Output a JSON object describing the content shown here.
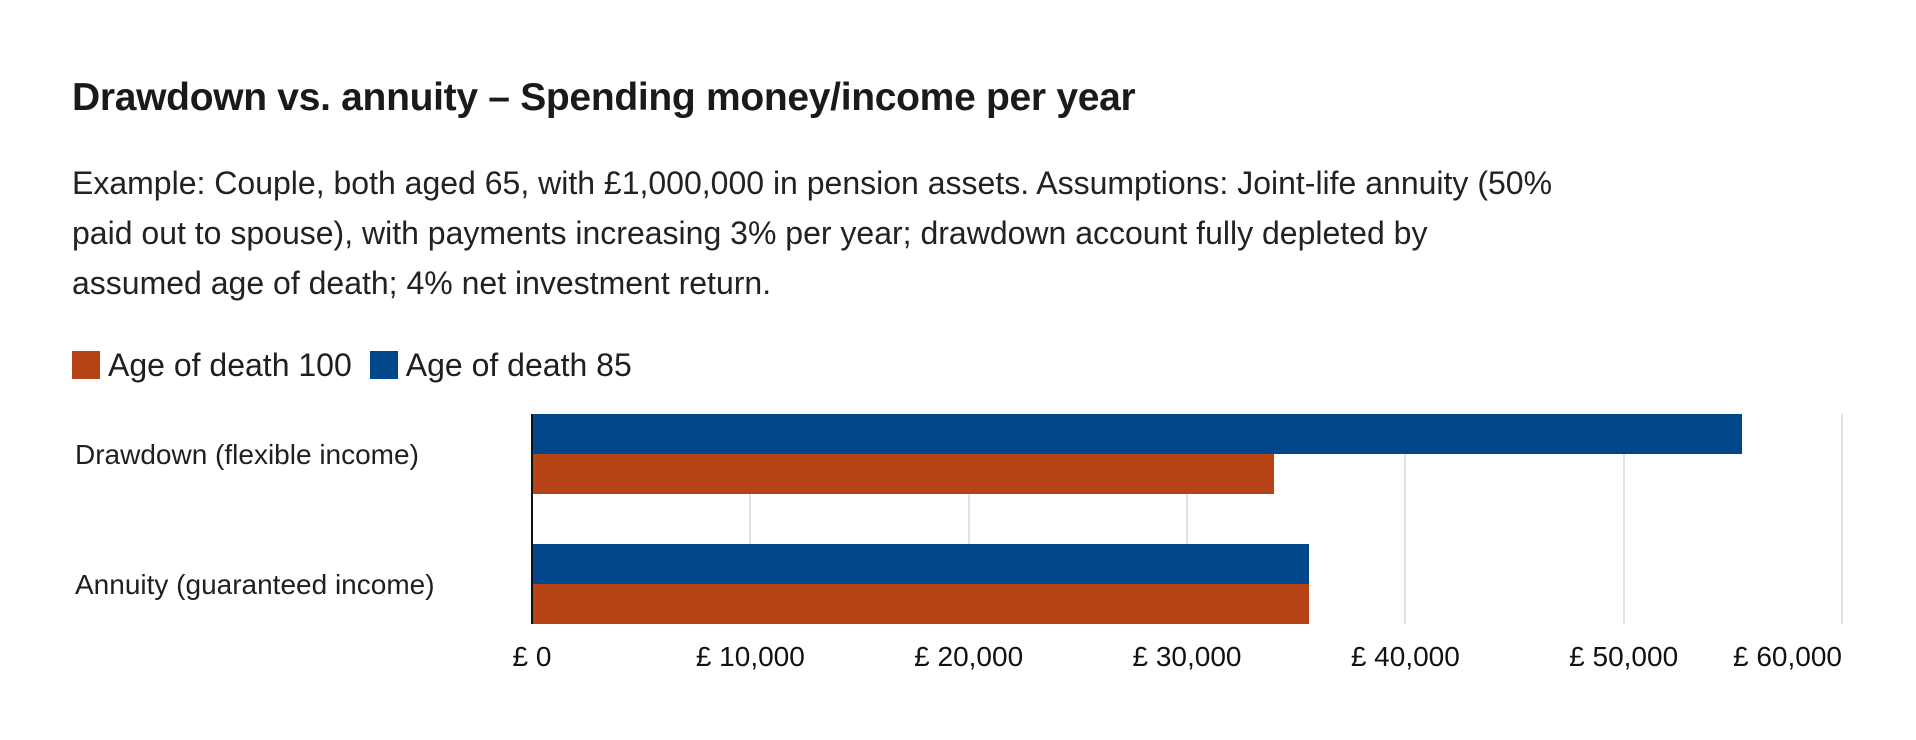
{
  "title": "Drawdown vs. annuity – Spending money/income per year",
  "subtitle_lines": [
    "Example: Couple, both aged 65, with £1,000,000 in pension assets. Assumptions: Joint-life annuity (50%",
    "paid out to spouse), with payments increasing 3% per year; drawdown account fully depleted by",
    "assumed age of death; 4% net investment return."
  ],
  "legend": [
    {
      "label": "Age of death 100",
      "color": "#B54316"
    },
    {
      "label": "Age of death 85",
      "color": "#00468B"
    }
  ],
  "colors": {
    "age_100": "#B54316",
    "age_85": "#00468B",
    "gridline": "#e3e3e3",
    "axis": "#111111"
  },
  "chart_data": {
    "type": "bar",
    "orientation": "horizontal",
    "title": "Drawdown vs. annuity – Spending money/income per year",
    "subtitle": "Example: Couple, both aged 65, with £1,000,000 in pension assets. Assumptions: Joint-life annuity (50% paid out to spouse), with payments increasing 3% per year; drawdown account fully depleted by assumed age of death; 4% net investment return.",
    "categories": [
      "Drawdown (flexible income)",
      "Annuity (guaranteed income)"
    ],
    "series": [
      {
        "name": "Age of death 85",
        "color": "#00468B",
        "values": [
          55400,
          35600
        ]
      },
      {
        "name": "Age of death 100",
        "color": "#B54316",
        "values": [
          34000,
          35600
        ]
      }
    ],
    "xlabel": "",
    "ylabel": "",
    "xlim": [
      0,
      60000
    ],
    "xticks": [
      0,
      10000,
      20000,
      30000,
      40000,
      50000,
      60000
    ],
    "xtick_labels": [
      "£ 0",
      "£ 10,000",
      "£ 20,000",
      "£ 30,000",
      "£ 40,000",
      "£ 50,000",
      "£ 60,000"
    ],
    "grid": "vertical",
    "legend_position": "top-left"
  }
}
